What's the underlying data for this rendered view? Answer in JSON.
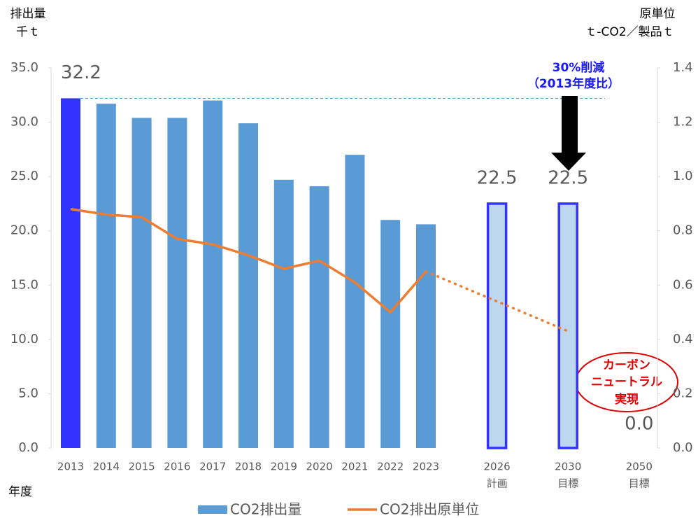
{
  "chart_data": {
    "type": "bar_line",
    "y_axis_label": [
      "排出量",
      "千ｔ"
    ],
    "y2_axis_label": [
      "原単位",
      "ｔ-CO2／製品ｔ"
    ],
    "x_axis_label": "年度",
    "categories": [
      "2013",
      "2014",
      "2015",
      "2016",
      "2017",
      "2018",
      "2019",
      "2020",
      "2021",
      "2022",
      "2023",
      "2026",
      "2030",
      "2050"
    ],
    "category_sublabels": [
      null,
      null,
      null,
      null,
      null,
      null,
      null,
      null,
      null,
      null,
      null,
      "計画",
      "目標",
      "目標"
    ],
    "ylim": [
      0,
      35
    ],
    "yticks": [
      {
        "value": 0,
        "label": "0.0"
      },
      {
        "value": 5,
        "label": "5.0"
      },
      {
        "value": 10,
        "label": "10.0"
      },
      {
        "value": 15,
        "label": "15.0"
      },
      {
        "value": 20,
        "label": "20.0"
      },
      {
        "value": 25,
        "label": "25.0"
      },
      {
        "value": 30,
        "label": "30.0"
      },
      {
        "value": 35,
        "label": "35.0"
      }
    ],
    "y2lim": [
      0,
      1.4
    ],
    "y2ticks": [
      {
        "value": 0,
        "label": "0.0"
      },
      0.2,
      0.4,
      0.6,
      0.8,
      {
        "value": 1,
        "label": "1.0"
      },
      1.2,
      1.4
    ],
    "series": [
      {
        "name": "CO2排出量",
        "kind": "bar",
        "color": "#5b9bd5",
        "values": [
          32.2,
          31.7,
          30.4,
          30.4,
          32.0,
          29.9,
          24.7,
          24.1,
          27.0,
          21.0,
          20.6,
          22.5,
          22.5,
          0.0
        ],
        "colors": [
          "#3333ff",
          "#5b9bd5",
          "#5b9bd5",
          "#5b9bd5",
          "#5b9bd5",
          "#5b9bd5",
          "#5b9bd5",
          "#5b9bd5",
          "#5b9bd5",
          "#5b9bd5",
          "#5b9bd5",
          "#bdd7ee",
          "#bdd7ee",
          "#bdd7ee"
        ],
        "outline_colors": [
          null,
          null,
          null,
          null,
          null,
          null,
          null,
          null,
          null,
          null,
          null,
          "#3333ff",
          "#3333ff",
          "#3333ff"
        ],
        "value_labels": [
          "32.2",
          null,
          null,
          null,
          null,
          null,
          null,
          null,
          null,
          null,
          null,
          "22.5",
          "22.5",
          "0.0"
        ]
      },
      {
        "name": "CO2排出原単位",
        "kind": "line",
        "axis": "y2",
        "color": "#ed7d31",
        "values": [
          0.88,
          0.86,
          0.85,
          0.77,
          0.75,
          0.71,
          0.66,
          0.69,
          0.61,
          0.5,
          0.65,
          null,
          null,
          null
        ]
      },
      {
        "kind": "line",
        "axis": "y2",
        "color": "#ed7d31",
        "dotted": true,
        "values": [
          null,
          null,
          null,
          null,
          null,
          null,
          null,
          null,
          null,
          null,
          0.65,
          0.54,
          0.43,
          null
        ]
      }
    ],
    "annotations": [
      "30%削減",
      "（2013年度比）"
    ],
    "callout": [
      "カーボン",
      "ニュートラル",
      "実現"
    ]
  }
}
